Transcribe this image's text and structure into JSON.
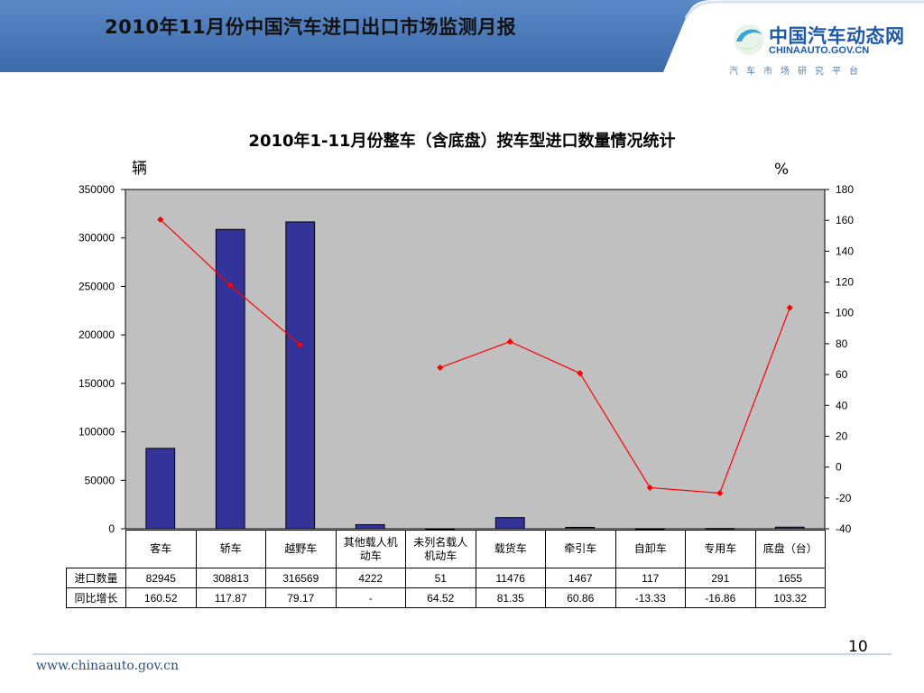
{
  "header": {
    "title": "2010年11月份中国汽车进口出口市场监测月报",
    "logo_cn": "中国汽车动态网",
    "logo_en": "CHINAAUTO.GOV.CN",
    "logo_tagline": "汽车市场研究平台"
  },
  "colors": {
    "header_band": "#4a78b8",
    "plot_background": "#c0c0c0",
    "bar_fill": "#333399",
    "line_color": "#ff0000"
  },
  "chart_data": {
    "type": "bar+line",
    "title": "2010年1-11月份整车（含底盘）按车型进口数量情况统计",
    "y_left_unit": "辆",
    "y_right_unit": "%",
    "ylim_left": [
      0,
      350000
    ],
    "yticks_left": [
      0,
      50000,
      100000,
      150000,
      200000,
      250000,
      300000,
      350000
    ],
    "ylim_right": [
      -40,
      180
    ],
    "yticks_right": [
      -40,
      -20,
      0,
      20,
      40,
      60,
      80,
      100,
      120,
      140,
      160,
      180
    ],
    "categories": [
      "客车",
      "轿车",
      "越野车",
      "其他载人机动车",
      "未列名载人机动车",
      "载货车",
      "牵引车",
      "自卸车",
      "专用车",
      "底盘（台）"
    ],
    "category_labels": [
      [
        "客车"
      ],
      [
        "轿车"
      ],
      [
        "越野车"
      ],
      [
        "其他载人机",
        "动车"
      ],
      [
        "未列名载人",
        "机动车"
      ],
      [
        "载货车"
      ],
      [
        "牵引车"
      ],
      [
        "自卸车"
      ],
      [
        "专用车"
      ],
      [
        "底盘（台）"
      ]
    ],
    "series": [
      {
        "name": "进口数量",
        "kind": "bar",
        "axis": "left",
        "values": [
          82945,
          308813,
          316569,
          4222,
          51,
          11476,
          1467,
          117,
          291,
          1655
        ],
        "display": [
          "82945",
          "308813",
          "316569",
          "4222",
          "51",
          "11476",
          "1467",
          "117",
          "291",
          "1655"
        ]
      },
      {
        "name": "同比增长",
        "kind": "line",
        "axis": "right",
        "values": [
          160.52,
          117.87,
          79.17,
          null,
          64.52,
          81.35,
          60.86,
          -13.33,
          -16.86,
          103.32
        ],
        "display": [
          "160.52",
          "117.87",
          "79.17",
          "-",
          "64.52",
          "81.35",
          "60.86",
          "-13.33",
          "-16.86",
          "103.32"
        ]
      }
    ],
    "grid": false,
    "legend": "data table below chart"
  },
  "footer": {
    "page_number": "10",
    "url": "www.chinaauto.gov.cn"
  }
}
